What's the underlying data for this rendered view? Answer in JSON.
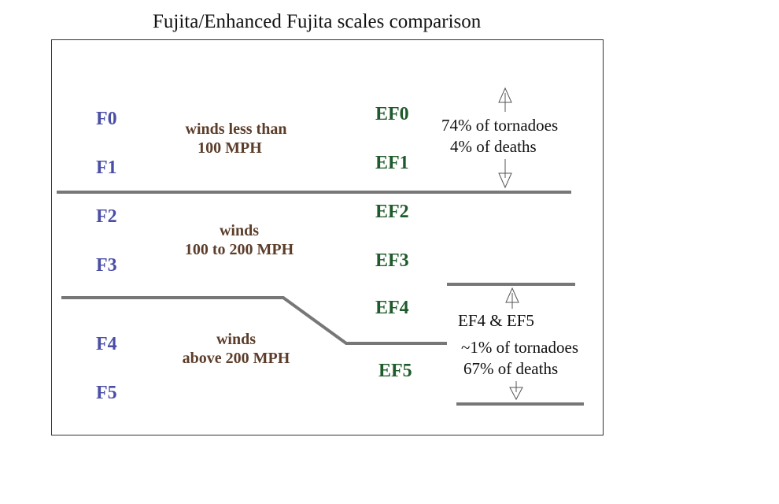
{
  "title": "Fujita/Enhanced Fujita scales comparison",
  "fujita": [
    "F0",
    "F1",
    "F2",
    "F3",
    "F4",
    "F5"
  ],
  "enhanced": [
    "EF0",
    "EF1",
    "EF2",
    "EF3",
    "EF4",
    "EF5"
  ],
  "groups": {
    "low": {
      "line1": "winds less than",
      "line2": "100 MPH"
    },
    "mid": {
      "line1": "winds",
      "line2": "100 to 200 MPH"
    },
    "high": {
      "line1": "winds",
      "line2": "above 200 MPH"
    }
  },
  "stats": {
    "weak": {
      "line1": "74% of tornadoes",
      "line2": "4% of deaths"
    },
    "violent": {
      "line1": "EF4 & EF5",
      "line2": "~1% of tornadoes",
      "line3": "67% of deaths"
    }
  },
  "colors": {
    "fujita": "#4a4ea6",
    "enhanced": "#1e5a2a",
    "description": "#5c3d2a",
    "divider": "#777777"
  }
}
